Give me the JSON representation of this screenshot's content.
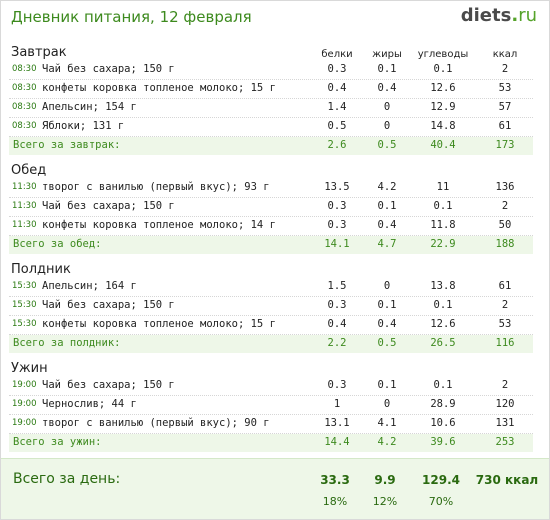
{
  "header": {
    "title": "Дневник питания, 12 февраля",
    "logo_name": "diets",
    "logo_dot": ".",
    "logo_tld": "ru"
  },
  "columns": {
    "protein": "белки",
    "fat": "жиры",
    "carbs": "углеводы",
    "kcal": "ккал"
  },
  "meals": [
    {
      "title": "Завтрак",
      "rows": [
        {
          "time": "08:30",
          "name": "Чай без сахара; 150 г",
          "protein": "0.3",
          "fat": "0.1",
          "carbs": "0.1",
          "kcal": "2"
        },
        {
          "time": "08:30",
          "name": "конфеты коровка топленое молоко; 15 г",
          "protein": "0.4",
          "fat": "0.4",
          "carbs": "12.6",
          "kcal": "53"
        },
        {
          "time": "08:30",
          "name": "Апельсин; 154 г",
          "protein": "1.4",
          "fat": "0",
          "carbs": "12.9",
          "kcal": "57"
        },
        {
          "time": "08:30",
          "name": "Яблоки; 131 г",
          "protein": "0.5",
          "fat": "0",
          "carbs": "14.8",
          "kcal": "61"
        }
      ],
      "total": {
        "label": "Всего за завтрак:",
        "protein": "2.6",
        "fat": "0.5",
        "carbs": "40.4",
        "kcal": "173"
      }
    },
    {
      "title": "Обед",
      "rows": [
        {
          "time": "11:30",
          "name": "творог с ванилью (первый вкус); 93 г",
          "protein": "13.5",
          "fat": "4.2",
          "carbs": "11",
          "kcal": "136"
        },
        {
          "time": "11:30",
          "name": "Чай без сахара; 150 г",
          "protein": "0.3",
          "fat": "0.1",
          "carbs": "0.1",
          "kcal": "2"
        },
        {
          "time": "11:30",
          "name": "конфеты коровка топленое молоко; 14 г",
          "protein": "0.3",
          "fat": "0.4",
          "carbs": "11.8",
          "kcal": "50"
        }
      ],
      "total": {
        "label": "Всего за обед:",
        "protein": "14.1",
        "fat": "4.7",
        "carbs": "22.9",
        "kcal": "188"
      }
    },
    {
      "title": "Полдник",
      "rows": [
        {
          "time": "15:30",
          "name": "Апельсин; 164 г",
          "protein": "1.5",
          "fat": "0",
          "carbs": "13.8",
          "kcal": "61"
        },
        {
          "time": "15:30",
          "name": "Чай без сахара; 150 г",
          "protein": "0.3",
          "fat": "0.1",
          "carbs": "0.1",
          "kcal": "2"
        },
        {
          "time": "15:30",
          "name": "конфеты коровка топленое молоко; 15 г",
          "protein": "0.4",
          "fat": "0.4",
          "carbs": "12.6",
          "kcal": "53"
        }
      ],
      "total": {
        "label": "Всего за полдник:",
        "protein": "2.2",
        "fat": "0.5",
        "carbs": "26.5",
        "kcal": "116"
      }
    },
    {
      "title": "Ужин",
      "rows": [
        {
          "time": "19:00",
          "name": "Чай без сахара; 150 г",
          "protein": "0.3",
          "fat": "0.1",
          "carbs": "0.1",
          "kcal": "2"
        },
        {
          "time": "19:00",
          "name": "Чернослив; 44 г",
          "protein": "1",
          "fat": "0",
          "carbs": "28.9",
          "kcal": "120"
        },
        {
          "time": "19:00",
          "name": "творог с ванилью (первый вкус); 90 г",
          "protein": "13.1",
          "fat": "4.1",
          "carbs": "10.6",
          "kcal": "131"
        }
      ],
      "total": {
        "label": "Всего за ужин:",
        "protein": "14.4",
        "fat": "4.2",
        "carbs": "39.6",
        "kcal": "253"
      }
    }
  ],
  "day_total": {
    "label": "Всего за день:",
    "protein": "33.3",
    "fat": "9.9",
    "carbs": "129.4",
    "kcal": "730 ккал",
    "protein_pct": "18%",
    "fat_pct": "12%",
    "carbs_pct": "70%"
  }
}
